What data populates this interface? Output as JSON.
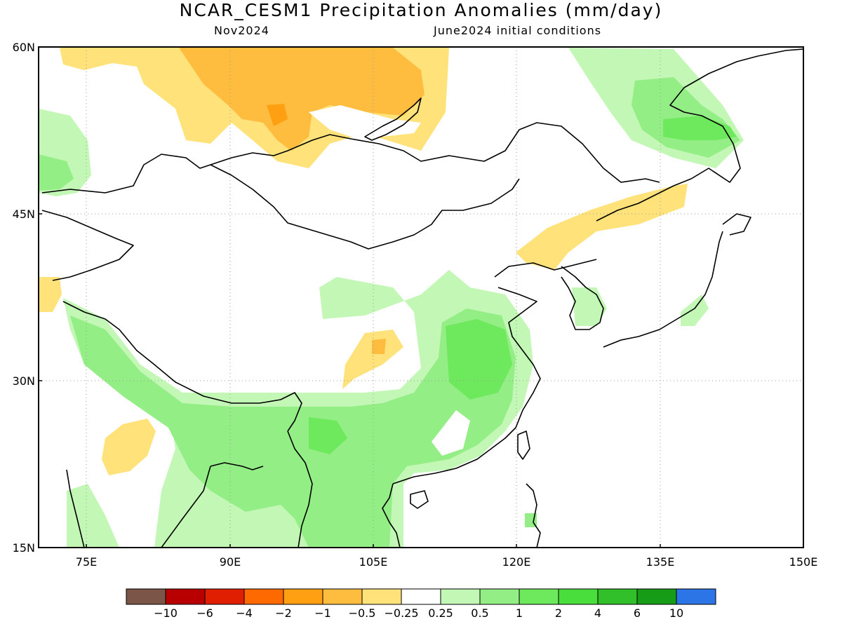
{
  "header": {
    "title": "NCAR_CESM1 Precipitation Anomalies (mm/day)",
    "target_month": "Nov2024",
    "init_conditions": "June2024 initial conditions"
  },
  "axes": {
    "lat_labels": [
      "60N",
      "45N",
      "30N",
      "15N"
    ],
    "lon_labels": [
      "75E",
      "90E",
      "105E",
      "120E",
      "135E",
      "150E"
    ]
  },
  "colorbar": {
    "colors": [
      "#7a5548",
      "#b80000",
      "#e01e00",
      "#ff6a00",
      "#ffa012",
      "#ffbd40",
      "#ffe27a",
      "#ffffff",
      "#c2f7b6",
      "#94ee86",
      "#6ee85d",
      "#4ade3c",
      "#32c02a",
      "#169c16",
      "#2b75e6"
    ],
    "labels": [
      "-10",
      "-6",
      "-4",
      "-2",
      "-1",
      "-0.5",
      "-0.25",
      "0.25",
      "0.5",
      "1",
      "2",
      "4",
      "6",
      "10"
    ]
  }
}
